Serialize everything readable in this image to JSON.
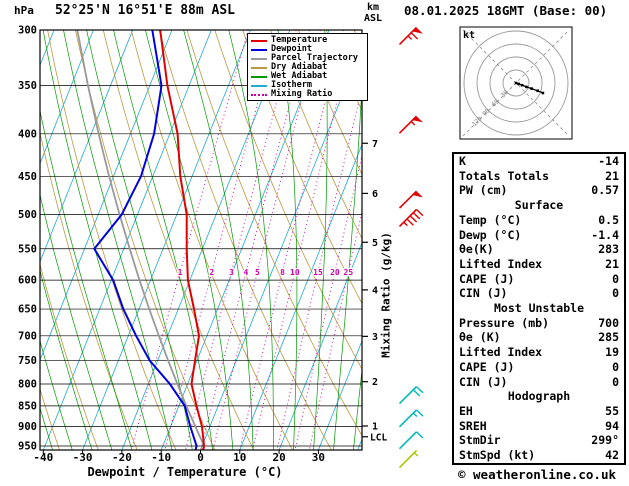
{
  "header": {
    "pressure_unit": "hPa",
    "title": "52°25'N 16°51'E 88m ASL",
    "km_label": "km",
    "asl_label": "ASL",
    "datetime": "08.01.2025 18GMT (Base: 00)"
  },
  "legend": {
    "items": [
      {
        "label": "Temperature",
        "color": "#e00000",
        "style": "solid"
      },
      {
        "label": "Dewpoint",
        "color": "#0000dd",
        "style": "solid"
      },
      {
        "label": "Parcel Trajectory",
        "color": "#999999",
        "style": "solid"
      },
      {
        "label": "Dry Adiabat",
        "color": "#bb9944",
        "style": "solid"
      },
      {
        "label": "Wet Adiabat",
        "color": "#009900",
        "style": "solid"
      },
      {
        "label": "Isotherm",
        "color": "#22aacc",
        "style": "solid"
      },
      {
        "label": "Mixing Ratio",
        "color": "#cc00aa",
        "style": "dotted"
      }
    ]
  },
  "axes": {
    "pressure_ticks": [
      300,
      350,
      400,
      450,
      500,
      550,
      600,
      650,
      700,
      750,
      800,
      850,
      900,
      950
    ],
    "temp_ticks": [
      -40,
      -30,
      -20,
      -10,
      0,
      10,
      20,
      30
    ],
    "xlabel": "Dewpoint / Temperature (°C)",
    "right_label": "Mixing Ratio (g/kg)",
    "km_ticks": [
      1,
      2,
      3,
      4,
      5,
      6,
      7
    ],
    "lcl_label": "LCL",
    "lcl_pressure": 926
  },
  "chart_data": {
    "type": "skewt_log_p",
    "pressure_range": [
      300,
      960
    ],
    "temp_axis_range": [
      -40,
      40
    ],
    "isotherm_step_c": 10,
    "mixing_ratio_lines_gkg": [
      1,
      2,
      3,
      4,
      5,
      8,
      10,
      15,
      20,
      25
    ],
    "colors": {
      "temperature": "#e00000",
      "dewpoint": "#0000dd",
      "parcel": "#999999",
      "dry_adiabat": "#bb9944",
      "wet_adiabat": "#009900",
      "isotherm": "#22aacc",
      "mixing_ratio": "#cc00aa"
    },
    "temperature_profile": [
      [
        960,
        0.6
      ],
      [
        950,
        0.5
      ],
      [
        900,
        -2.0
      ],
      [
        850,
        -5.5
      ],
      [
        800,
        -9.0
      ],
      [
        750,
        -10.5
      ],
      [
        700,
        -12.0
      ],
      [
        650,
        -16.0
      ],
      [
        600,
        -20.5
      ],
      [
        550,
        -24.0
      ],
      [
        500,
        -27.5
      ],
      [
        450,
        -33.0
      ],
      [
        400,
        -38.0
      ],
      [
        350,
        -45.5
      ],
      [
        300,
        -53.0
      ]
    ],
    "dewpoint_profile": [
      [
        960,
        -1.3
      ],
      [
        950,
        -1.4
      ],
      [
        900,
        -5.0
      ],
      [
        850,
        -8.5
      ],
      [
        800,
        -14.5
      ],
      [
        750,
        -22.0
      ],
      [
        700,
        -28.0
      ],
      [
        650,
        -34.0
      ],
      [
        600,
        -39.5
      ],
      [
        550,
        -47.5
      ],
      [
        500,
        -44.0
      ],
      [
        450,
        -43.0
      ],
      [
        400,
        -44.0
      ],
      [
        350,
        -47.0
      ],
      [
        300,
        -55.0
      ]
    ],
    "parcel_profile": [
      [
        960,
        0.8
      ],
      [
        950,
        0.5
      ],
      [
        900,
        -3.7
      ],
      [
        850,
        -8.1
      ],
      [
        800,
        -12.6
      ],
      [
        750,
        -17.3
      ],
      [
        700,
        -22.2
      ],
      [
        650,
        -27.4
      ],
      [
        600,
        -32.8
      ],
      [
        550,
        -38.5
      ],
      [
        500,
        -44.6
      ],
      [
        450,
        -51.1
      ],
      [
        400,
        -58.1
      ],
      [
        350,
        -65.7
      ],
      [
        300,
        -74.1
      ]
    ],
    "wind_barbs": [
      {
        "pressure": 305,
        "speed_kt": 65,
        "color": "#e00000"
      },
      {
        "pressure": 390,
        "speed_kt": 55,
        "color": "#e00000"
      },
      {
        "pressure": 480,
        "speed_kt": 50,
        "color": "#e00000"
      },
      {
        "pressure": 505,
        "speed_kt": 45,
        "color": "#e00000"
      },
      {
        "pressure": 825,
        "speed_kt": 20,
        "color": "#00b8b8"
      },
      {
        "pressure": 880,
        "speed_kt": 15,
        "color": "#00b8b8"
      },
      {
        "pressure": 935,
        "speed_kt": 10,
        "color": "#00b8b8"
      },
      {
        "pressure": 985,
        "speed_kt": 5,
        "color": "#a8c800"
      }
    ]
  },
  "hodograph": {
    "unit": "kt",
    "rings_kt": [
      30,
      60,
      90,
      120
    ],
    "trace_uv_kt": [
      [
        0,
        0
      ],
      [
        6,
        -2
      ],
      [
        14,
        -5
      ],
      [
        24,
        -9
      ],
      [
        36,
        -13
      ],
      [
        50,
        -18
      ],
      [
        62,
        -23
      ]
    ]
  },
  "table": {
    "rows_top": [
      {
        "label": "K",
        "value": "-14"
      },
      {
        "label": "Totals Totals",
        "value": "21"
      },
      {
        "label": "PW (cm)",
        "value": "0.57"
      }
    ],
    "surface_header": "Surface",
    "surface_rows": [
      {
        "label": "Temp (°C)",
        "value": "0.5"
      },
      {
        "label": "Dewp (°C)",
        "value": "-1.4"
      },
      {
        "label": "θe(K)",
        "value": "283"
      },
      {
        "label": "Lifted Index",
        "value": "21"
      },
      {
        "label": "CAPE (J)",
        "value": "0"
      },
      {
        "label": "CIN (J)",
        "value": "0"
      }
    ],
    "mu_header": "Most Unstable",
    "mu_rows": [
      {
        "label": "Pressure (mb)",
        "value": "700"
      },
      {
        "label": "θe (K)",
        "value": "285"
      },
      {
        "label": "Lifted Index",
        "value": "19"
      },
      {
        "label": "CAPE (J)",
        "value": "0"
      },
      {
        "label": "CIN (J)",
        "value": "0"
      }
    ],
    "hodo_header": "Hodograph",
    "hodo_rows": [
      {
        "label": "EH",
        "value": "55"
      },
      {
        "label": "SREH",
        "value": "94"
      },
      {
        "label": "StmDir",
        "value": "299°"
      },
      {
        "label": "StmSpd (kt)",
        "value": "42"
      }
    ]
  },
  "footer": {
    "copyright": "© weatheronline.co.uk"
  }
}
